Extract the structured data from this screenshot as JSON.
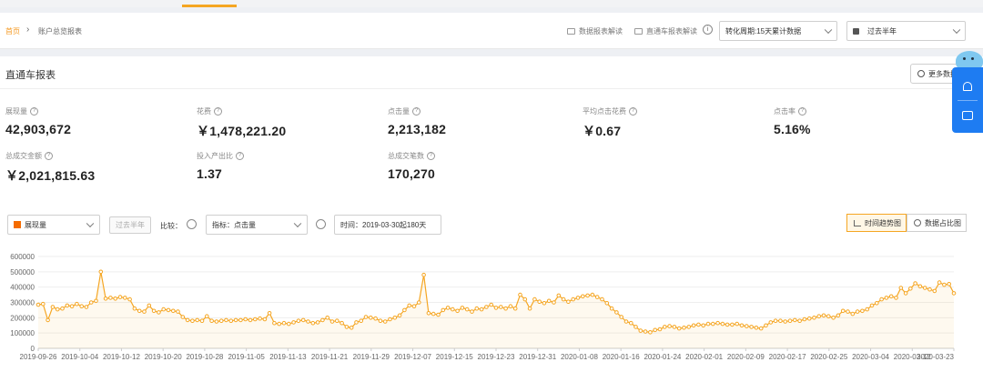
{
  "breadcrumb": {
    "home": "首页",
    "separator": "›",
    "current": "账户总览报表"
  },
  "header": {
    "data_report_guide": "数据报表解读",
    "ztc_report_guide": "直通车报表解读",
    "info": "i",
    "conversion_period": "转化周期:15天累计数据",
    "date_range": "过去半年"
  },
  "panel": {
    "title": "直通车报表",
    "more_data": "更多数据"
  },
  "metrics": [
    {
      "label": "展现量",
      "value": "42,903,672"
    },
    {
      "label": "花费",
      "value": "￥1,478,221.20"
    },
    {
      "label": "点击量",
      "value": "2,213,182"
    },
    {
      "label": "平均点击花费",
      "value": "￥0.67"
    },
    {
      "label": "点击率",
      "value": "5.16%"
    },
    {
      "label": "总成交金额",
      "value": "￥2,021,815.63"
    },
    {
      "label": "投入产出比",
      "value": "1.37"
    },
    {
      "label": "总成交笔数",
      "value": "170,270"
    }
  ],
  "controls": {
    "metric_select": "展现量",
    "period_chip": "过去半年",
    "compare_label": "比较：",
    "indicator_select": "指标：点击量",
    "time_range": "时间：2019-03-30起180天",
    "trend_view": "时间趋势图",
    "share_view": "数据占比图"
  },
  "colors": {
    "accent": "#f5a623",
    "series": "#f5a623",
    "float_panel": "#1e7cf2"
  },
  "chart_data": {
    "type": "line",
    "ylim": [
      0,
      600000
    ],
    "yticks": [
      "0",
      "100000",
      "200000",
      "300000",
      "400000",
      "500000",
      "600000"
    ],
    "xticks": [
      "2019-09-26",
      "2019-10-04",
      "2019-10-12",
      "2019-10-20",
      "2019-10-28",
      "2019-11-05",
      "2019-11-13",
      "2019-11-21",
      "2019-11-29",
      "2019-12-07",
      "2019-12-15",
      "2019-12-23",
      "2019-12-31",
      "2020-01-08",
      "2020-01-16",
      "2020-01-24",
      "2020-02-01",
      "2020-02-09",
      "2020-02-17",
      "2020-02-25",
      "2020-03-04",
      "2020-03-12",
      "2020-03-23"
    ],
    "grid": true,
    "series": [
      {
        "values": [
          285000,
          290000,
          185000,
          270000,
          255000,
          260000,
          280000,
          275000,
          290000,
          275000,
          270000,
          300000,
          310000,
          500000,
          325000,
          330000,
          325000,
          335000,
          330000,
          320000,
          260000,
          245000,
          240000,
          280000,
          245000,
          235000,
          255000,
          250000,
          245000,
          240000,
          205000,
          185000,
          180000,
          185000,
          180000,
          210000,
          180000,
          175000,
          180000,
          185000,
          180000,
          185000,
          185000,
          190000,
          185000,
          190000,
          195000,
          190000,
          230000,
          165000,
          160000,
          165000,
          160000,
          170000,
          180000,
          185000,
          175000,
          165000,
          170000,
          185000,
          200000,
          175000,
          180000,
          165000,
          140000,
          135000,
          170000,
          180000,
          205000,
          200000,
          195000,
          180000,
          175000,
          190000,
          200000,
          215000,
          250000,
          280000,
          275000,
          300000,
          480000,
          230000,
          225000,
          220000,
          250000,
          265000,
          255000,
          245000,
          265000,
          255000,
          240000,
          260000,
          255000,
          270000,
          285000,
          265000,
          270000,
          260000,
          275000,
          260000,
          350000,
          320000,
          260000,
          320000,
          305000,
          295000,
          310000,
          300000,
          345000,
          320000,
          305000,
          320000,
          330000,
          340000,
          345000,
          350000,
          335000,
          320000,
          295000,
          260000,
          235000,
          205000,
          175000,
          165000,
          140000,
          115000,
          110000,
          105000,
          120000,
          125000,
          140000,
          145000,
          140000,
          130000,
          135000,
          140000,
          150000,
          155000,
          150000,
          160000,
          160000,
          165000,
          160000,
          155000,
          155000,
          160000,
          150000,
          145000,
          140000,
          135000,
          130000,
          150000,
          170000,
          180000,
          180000,
          175000,
          180000,
          185000,
          180000,
          190000,
          195000,
          200000,
          210000,
          215000,
          210000,
          200000,
          215000,
          245000,
          240000,
          225000,
          240000,
          245000,
          255000,
          280000,
          295000,
          320000,
          330000,
          340000,
          330000,
          395000,
          360000,
          390000,
          425000,
          405000,
          395000,
          385000,
          375000,
          430000,
          415000,
          420000,
          360000
        ]
      }
    ]
  }
}
